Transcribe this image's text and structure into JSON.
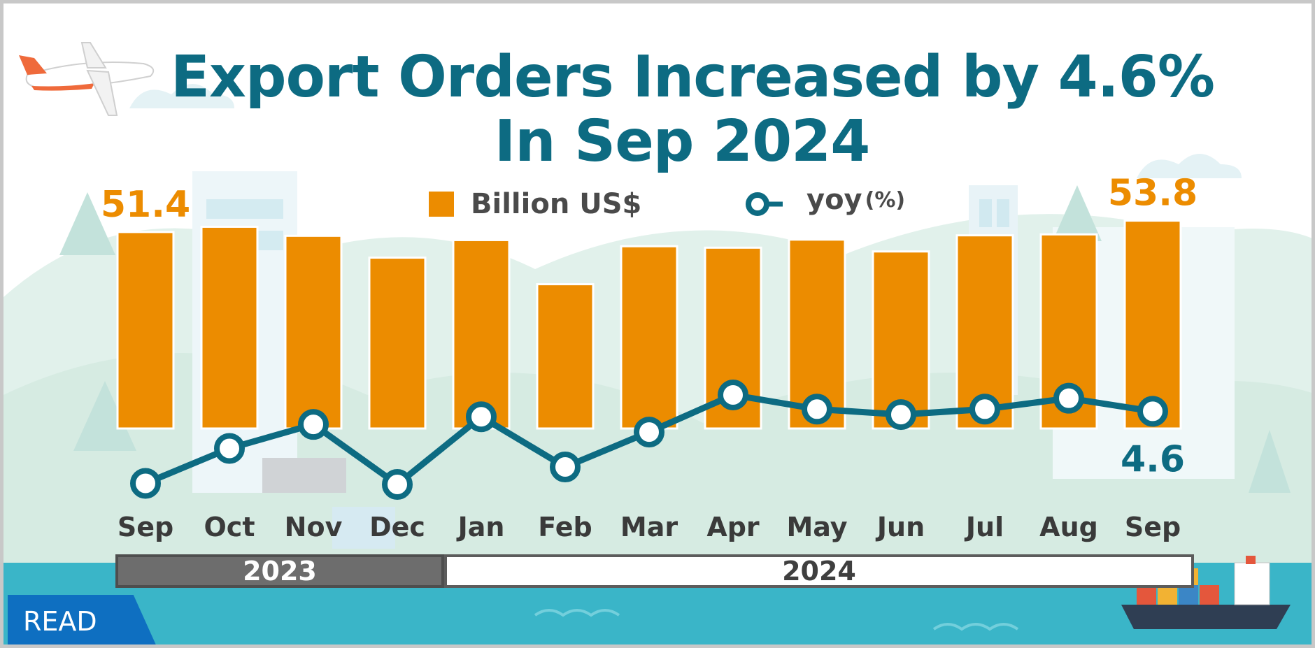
{
  "title": {
    "line1": "Export Orders Increased by 4.6%",
    "line2": "In  Sep 2024"
  },
  "legend": {
    "bar_label": "Billion US$",
    "line_label": "yoy",
    "line_unit": "(%)"
  },
  "years": [
    "2023",
    "2024"
  ],
  "read_button": "READ",
  "colors": {
    "bar": "#ec8c00",
    "line": "#0d6b82",
    "title": "#0d6b82",
    "highlight_label": "#ec8c00"
  },
  "chart_data": {
    "type": "bar",
    "categories": [
      "Sep",
      "Oct",
      "Nov",
      "Dec",
      "Jan",
      "Feb",
      "Mar",
      "Apr",
      "May",
      "Jun",
      "Jul",
      "Aug",
      "Sep"
    ],
    "series": [
      {
        "name": "Billion US$",
        "type": "bar",
        "values": [
          51.4,
          52.5,
          50.6,
          46.0,
          49.7,
          40.4,
          48.4,
          48.1,
          49.8,
          47.3,
          50.7,
          50.9,
          53.8
        ]
      },
      {
        "name": "yoy(%)",
        "type": "line",
        "values": [
          -2.0,
          1.2,
          3.4,
          -2.1,
          4.1,
          -0.5,
          2.7,
          6.1,
          4.8,
          4.3,
          4.8,
          5.8,
          4.6
        ]
      }
    ],
    "data_labels": [
      {
        "series": "Billion US$",
        "index": 0,
        "text": "51.4"
      },
      {
        "series": "Billion US$",
        "index": 12,
        "text": "53.8"
      },
      {
        "series": "yoy(%)",
        "index": 12,
        "text": "4.6"
      }
    ],
    "year_groups": [
      {
        "label": "2023",
        "from": 0,
        "to": 3
      },
      {
        "label": "2024",
        "from": 4,
        "to": 12
      }
    ],
    "legend_position": "top-center"
  }
}
